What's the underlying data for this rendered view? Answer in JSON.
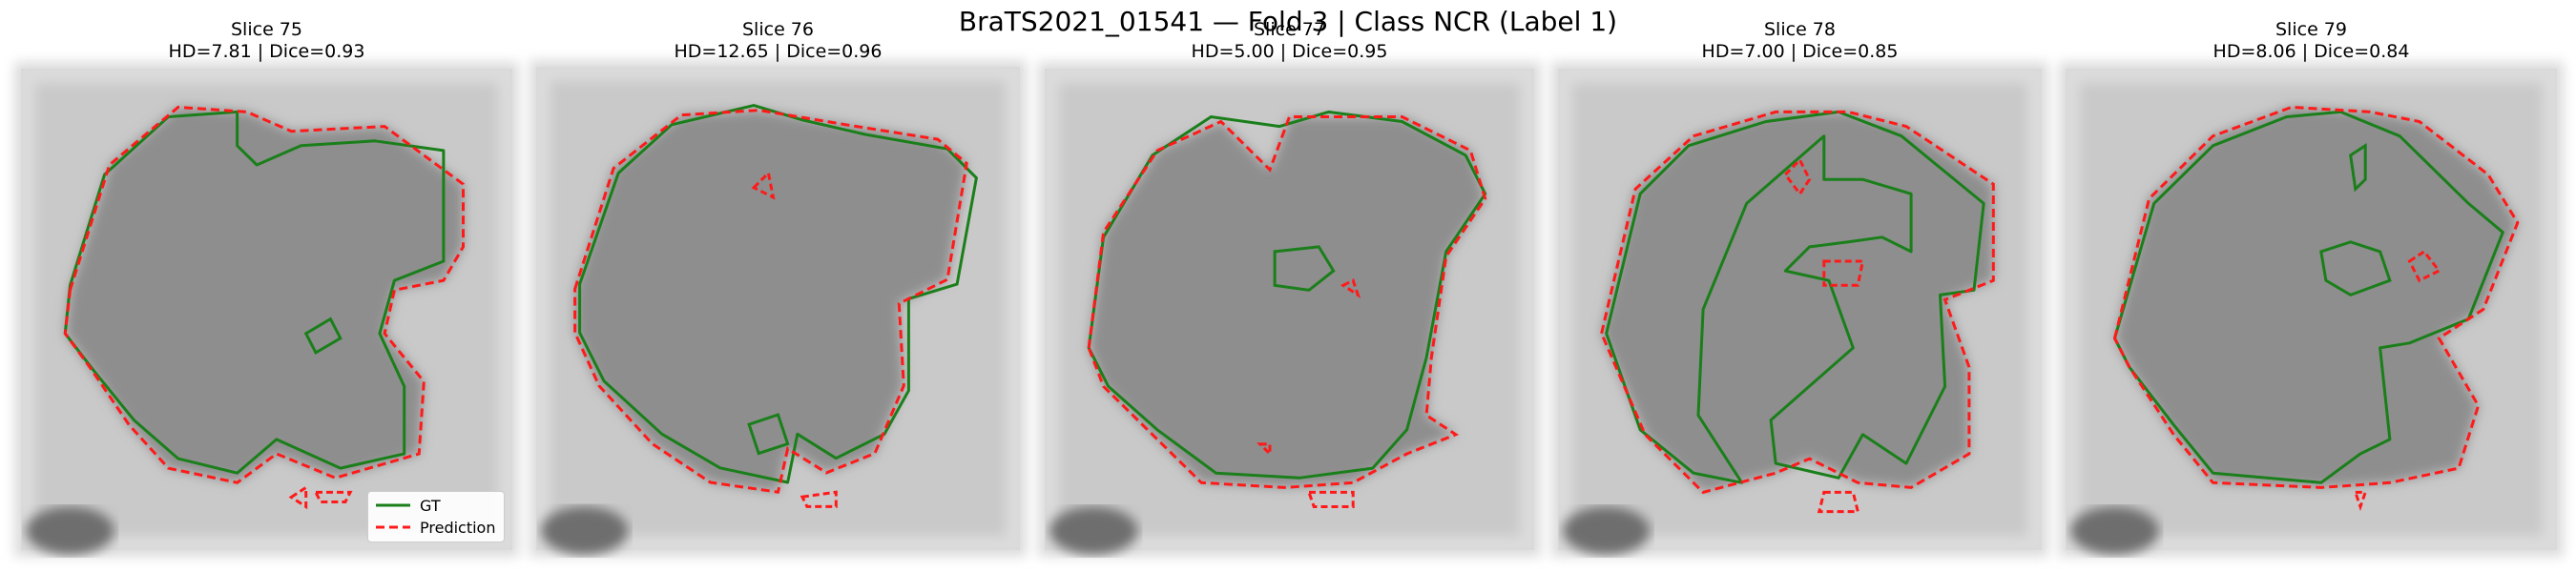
{
  "figure": {
    "suptitle": "BraTS2021_01541 — Fold 3 | Class NCR (Label 1)"
  },
  "colors": {
    "gt": "#1a7f1a",
    "prediction": "#ff1a1a",
    "background": "#ffffff"
  },
  "legend": {
    "gt_label": "GT",
    "prediction_label": "Prediction"
  },
  "chart_data": [
    {
      "type": "image-overlay",
      "title": "Slice 75",
      "metrics": "HD=7.81 | Dice=0.93",
      "slice": 75,
      "hd": 7.81,
      "dice": 0.93
    },
    {
      "type": "image-overlay",
      "title": "Slice 76",
      "metrics": "HD=12.65 | Dice=0.96",
      "slice": 76,
      "hd": 12.65,
      "dice": 0.96
    },
    {
      "type": "image-overlay",
      "title": "Slice 77",
      "metrics": "HD=5.00 | Dice=0.95",
      "slice": 77,
      "hd": 5.0,
      "dice": 0.95
    },
    {
      "type": "image-overlay",
      "title": "Slice 78",
      "metrics": "HD=7.00 | Dice=0.85",
      "slice": 78,
      "hd": 7.0,
      "dice": 0.85
    },
    {
      "type": "image-overlay",
      "title": "Slice 79",
      "metrics": "HD=8.06 | Dice=0.84",
      "slice": 79,
      "hd": 8.06,
      "dice": 0.84
    }
  ]
}
